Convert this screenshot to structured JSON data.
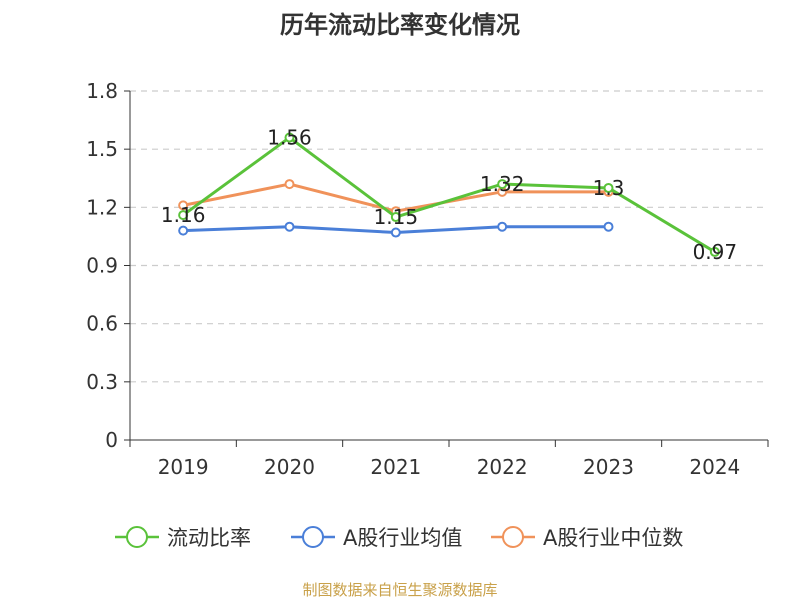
{
  "chart_data": {
    "type": "line",
    "title": "历年流动比率变化情况",
    "categories": [
      "2019",
      "2020",
      "2021",
      "2022",
      "2023",
      "2024"
    ],
    "y_ticks": [
      "0",
      "0.3",
      "0.6",
      "0.9",
      "1.2",
      "1.5",
      "1.8"
    ],
    "ylim": [
      0,
      1.8
    ],
    "grid": "horizontal-dashed",
    "legend_position": "bottom",
    "series": [
      {
        "name": "流动比率",
        "color": "#5ac23a",
        "values": [
          1.16,
          1.56,
          1.15,
          1.32,
          1.3,
          0.97
        ],
        "labels": [
          "1.16",
          "1.56",
          "1.15",
          "1.32",
          "1.3",
          "0.97"
        ]
      },
      {
        "name": "A股行业均值",
        "color": "#4a7fd8",
        "values": [
          1.08,
          1.1,
          1.07,
          1.1,
          1.1,
          null
        ]
      },
      {
        "name": "A股行业中位数",
        "color": "#f0925a",
        "values": [
          1.21,
          1.32,
          1.18,
          1.28,
          1.28,
          null
        ]
      }
    ],
    "source": "制图数据来自恒生聚源数据库"
  }
}
